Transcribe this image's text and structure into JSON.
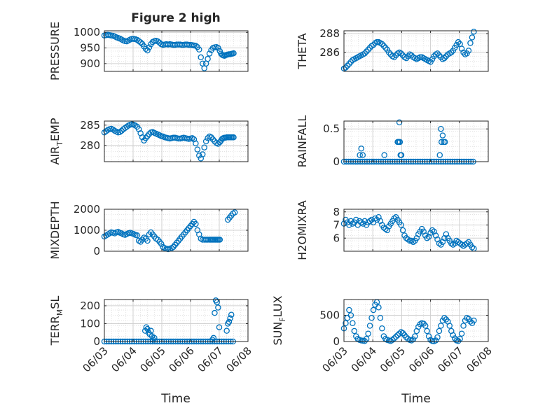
{
  "figure": {
    "title": "Figure 2 high",
    "date_ticks": [
      "06/03",
      "06/04",
      "06/05",
      "06/06",
      "06/07",
      "06/08"
    ],
    "xlabel": "Time",
    "marker_color": "#0072BD"
  },
  "chart_data": [
    {
      "type": "scatter",
      "ylabel": "PRESSURE",
      "xlim": [
        0,
        5
      ],
      "ylim": [
        875,
        1005
      ],
      "yticks": [
        900,
        950,
        1000
      ],
      "ytick_labels": [
        "900",
        "950",
        "1000"
      ],
      "x": [
        0.0,
        0.06,
        0.12,
        0.18,
        0.24,
        0.3,
        0.36,
        0.42,
        0.48,
        0.54,
        0.6,
        0.66,
        0.72,
        0.78,
        0.84,
        0.9,
        0.96,
        1.02,
        1.08,
        1.14,
        1.2,
        1.26,
        1.32,
        1.38,
        1.44,
        1.5,
        1.56,
        1.62,
        1.68,
        1.74,
        1.8,
        1.86,
        1.92,
        1.98,
        2.04,
        2.1,
        2.16,
        2.22,
        2.28,
        2.34,
        2.4,
        2.46,
        2.52,
        2.58,
        2.64,
        2.7,
        2.76,
        2.82,
        2.88,
        2.94,
        3.0,
        3.06,
        3.12,
        3.18,
        3.24,
        3.3,
        3.36,
        3.42,
        3.48,
        3.54,
        3.6,
        3.66,
        3.72,
        3.78,
        3.84,
        3.9,
        3.96,
        4.02,
        4.06,
        4.1,
        4.14,
        4.18,
        4.22,
        4.26,
        4.3,
        4.34,
        4.38,
        4.42,
        4.46,
        4.5
      ],
      "y": [
        990,
        991,
        992,
        991,
        990,
        989,
        987,
        984,
        982,
        980,
        977,
        974,
        972,
        971,
        974,
        977,
        979,
        979,
        978,
        976,
        972,
        968,
        963,
        955,
        947,
        942,
        952,
        962,
        969,
        972,
        973,
        971,
        967,
        962,
        960,
        961,
        962,
        961,
        962,
        961,
        960,
        960,
        961,
        961,
        961,
        960,
        960,
        961,
        961,
        960,
        960,
        959,
        958,
        957,
        953,
        945,
        920,
        900,
        885,
        900,
        915,
        932,
        943,
        950,
        952,
        953,
        950,
        940,
        932,
        928,
        926,
        925,
        927,
        928,
        929,
        930,
        930,
        931,
        932,
        933
      ]
    },
    {
      "type": "scatter",
      "ylabel": "THETA",
      "xlim": [
        0,
        5
      ],
      "ylim": [
        284,
        288.3
      ],
      "yticks": [
        286,
        288
      ],
      "ytick_labels": [
        "286",
        "288"
      ],
      "x": [
        0.0,
        0.06,
        0.12,
        0.18,
        0.24,
        0.3,
        0.36,
        0.42,
        0.48,
        0.54,
        0.6,
        0.66,
        0.72,
        0.78,
        0.84,
        0.9,
        0.96,
        1.02,
        1.08,
        1.14,
        1.2,
        1.26,
        1.32,
        1.38,
        1.44,
        1.5,
        1.56,
        1.62,
        1.68,
        1.74,
        1.8,
        1.86,
        1.92,
        1.98,
        2.04,
        2.1,
        2.16,
        2.22,
        2.28,
        2.34,
        2.4,
        2.46,
        2.52,
        2.58,
        2.64,
        2.7,
        2.76,
        2.82,
        2.88,
        2.94,
        3.0,
        3.06,
        3.12,
        3.18,
        3.24,
        3.3,
        3.36,
        3.42,
        3.48,
        3.54,
        3.6,
        3.66,
        3.72,
        3.78,
        3.84,
        3.9,
        3.96,
        4.02,
        4.08,
        4.14,
        4.2,
        4.26,
        4.32,
        4.38,
        4.44,
        4.5
      ],
      "y": [
        284.3,
        284.4,
        284.6,
        284.8,
        285.0,
        285.2,
        285.3,
        285.4,
        285.5,
        285.6,
        285.7,
        285.8,
        285.9,
        286.1,
        286.3,
        286.5,
        286.7,
        286.8,
        287.0,
        287.1,
        287.1,
        287.0,
        286.9,
        286.7,
        286.5,
        286.3,
        286.0,
        285.8,
        285.6,
        285.5,
        285.7,
        285.9,
        286.0,
        285.9,
        285.7,
        285.5,
        285.4,
        285.6,
        285.8,
        285.7,
        285.5,
        285.4,
        285.3,
        285.4,
        285.5,
        285.5,
        285.4,
        285.3,
        285.2,
        285.1,
        285.0,
        285.3,
        285.6,
        285.8,
        285.9,
        285.7,
        285.5,
        285.3,
        285.4,
        285.6,
        285.8,
        285.9,
        286.0,
        286.2,
        286.5,
        286.8,
        287.1,
        286.9,
        286.4,
        286.0,
        285.8,
        285.9,
        286.2,
        287.0,
        287.6,
        288.2
      ]
    },
    {
      "type": "scatter",
      "ylabel": "AIR_TEMP",
      "ylabel_parts": [
        "AIR",
        "T",
        "EMP"
      ],
      "xlim": [
        0,
        5
      ],
      "ylim": [
        276,
        286
      ],
      "yticks": [
        280,
        285
      ],
      "ytick_labels": [
        "280",
        "285"
      ],
      "x": [
        0.0,
        0.06,
        0.12,
        0.18,
        0.24,
        0.3,
        0.36,
        0.42,
        0.48,
        0.54,
        0.6,
        0.66,
        0.72,
        0.78,
        0.84,
        0.9,
        0.96,
        1.02,
        1.08,
        1.14,
        1.2,
        1.26,
        1.32,
        1.38,
        1.44,
        1.5,
        1.56,
        1.62,
        1.68,
        1.74,
        1.8,
        1.86,
        1.92,
        1.98,
        2.04,
        2.1,
        2.16,
        2.22,
        2.28,
        2.34,
        2.4,
        2.46,
        2.52,
        2.58,
        2.64,
        2.7,
        2.76,
        2.82,
        2.88,
        2.94,
        3.0,
        3.06,
        3.12,
        3.18,
        3.24,
        3.3,
        3.36,
        3.42,
        3.48,
        3.54,
        3.6,
        3.66,
        3.72,
        3.78,
        3.84,
        3.9,
        3.96,
        4.02,
        4.06,
        4.1,
        4.14,
        4.18,
        4.22,
        4.26,
        4.3,
        4.34,
        4.38,
        4.42,
        4.46,
        4.5
      ],
      "y": [
        283.2,
        283.5,
        283.8,
        284.0,
        284.1,
        283.9,
        283.6,
        283.4,
        283.2,
        283.3,
        283.6,
        284.0,
        284.3,
        284.6,
        284.9,
        285.1,
        285.2,
        285.1,
        284.9,
        284.6,
        284.0,
        283.0,
        282.0,
        281.2,
        281.8,
        282.3,
        282.8,
        283.2,
        283.3,
        283.1,
        282.9,
        282.7,
        282.5,
        282.3,
        282.2,
        282.0,
        281.9,
        281.8,
        281.7,
        281.8,
        281.9,
        281.9,
        281.8,
        281.7,
        281.7,
        281.8,
        281.9,
        281.8,
        281.7,
        281.6,
        281.7,
        281.8,
        281.5,
        280.5,
        279.0,
        277.5,
        276.8,
        277.8,
        279.5,
        281.0,
        281.8,
        282.2,
        282.0,
        281.5,
        281.0,
        280.6,
        280.4,
        280.8,
        281.2,
        281.6,
        281.8,
        281.9,
        281.9,
        282.0,
        282.0,
        282.0,
        282.0,
        282.0,
        282.0,
        282.0
      ]
    },
    {
      "type": "scatter",
      "ylabel": "RAINFALL",
      "xlim": [
        0,
        5
      ],
      "ylim": [
        0,
        0.62
      ],
      "yticks": [
        0,
        0.5
      ],
      "ytick_labels": [
        "0",
        "0.5"
      ],
      "x": [
        0.0,
        0.08,
        0.16,
        0.24,
        0.32,
        0.4,
        0.48,
        0.56,
        0.64,
        0.72,
        0.8,
        0.88,
        0.96,
        1.04,
        1.12,
        1.2,
        1.28,
        1.36,
        1.44,
        1.52,
        1.6,
        1.68,
        1.76,
        1.84,
        1.92,
        2.0,
        2.08,
        2.16,
        2.24,
        2.32,
        2.4,
        2.48,
        2.56,
        2.64,
        2.72,
        2.8,
        2.88,
        2.96,
        3.04,
        3.12,
        3.2,
        3.28,
        3.36,
        3.44,
        3.52,
        3.6,
        3.68,
        3.76,
        3.84,
        3.92,
        4.0,
        4.08,
        4.16,
        4.24,
        4.32,
        4.4,
        4.48,
        0.55,
        0.6,
        0.65,
        1.4,
        1.86,
        1.88,
        1.9,
        1.92,
        1.94,
        1.96,
        1.99,
        3.32,
        3.36,
        3.38,
        3.42,
        3.46,
        3.5
      ],
      "y": [
        0,
        0,
        0,
        0,
        0,
        0,
        0,
        0,
        0,
        0,
        0,
        0,
        0,
        0,
        0,
        0,
        0,
        0,
        0,
        0,
        0,
        0,
        0,
        0,
        0,
        0,
        0,
        0,
        0,
        0,
        0,
        0,
        0,
        0,
        0,
        0,
        0,
        0,
        0,
        0,
        0,
        0,
        0,
        0,
        0,
        0,
        0,
        0,
        0,
        0,
        0,
        0,
        0,
        0,
        0,
        0,
        0,
        0.1,
        0.2,
        0.1,
        0.1,
        0.3,
        0.3,
        0.3,
        0.6,
        0.3,
        0.1,
        0.1,
        0.1,
        0.5,
        0.3,
        0.4,
        0.3,
        0.3
      ]
    },
    {
      "type": "scatter",
      "ylabel": "MIXDEPTH",
      "xlim": [
        0,
        5
      ],
      "ylim": [
        0,
        2000
      ],
      "yticks": [
        0,
        1000,
        2000
      ],
      "ytick_labels": [
        "0",
        "1000",
        "2000"
      ],
      "x": [
        0.0,
        0.06,
        0.12,
        0.18,
        0.24,
        0.3,
        0.36,
        0.42,
        0.48,
        0.54,
        0.6,
        0.66,
        0.72,
        0.78,
        0.84,
        0.9,
        0.96,
        1.02,
        1.08,
        1.14,
        1.2,
        1.26,
        1.32,
        1.38,
        1.44,
        1.5,
        1.56,
        1.62,
        1.68,
        1.74,
        1.8,
        1.86,
        1.92,
        1.98,
        2.04,
        2.1,
        2.16,
        2.22,
        2.28,
        2.34,
        2.4,
        2.46,
        2.52,
        2.58,
        2.64,
        2.7,
        2.76,
        2.82,
        2.88,
        2.94,
        3.0,
        3.06,
        3.12,
        3.18,
        3.24,
        3.3,
        3.36,
        3.42,
        3.48,
        3.54,
        3.6,
        3.66,
        3.7,
        3.74,
        3.78,
        3.82,
        3.86,
        3.9,
        3.94,
        3.98,
        4.02,
        4.3,
        4.36,
        4.42,
        4.48,
        4.54
      ],
      "y": [
        700,
        750,
        800,
        850,
        900,
        880,
        850,
        900,
        920,
        880,
        850,
        800,
        780,
        820,
        860,
        880,
        850,
        820,
        780,
        760,
        500,
        450,
        550,
        650,
        600,
        500,
        800,
        900,
        800,
        700,
        600,
        550,
        450,
        350,
        200,
        150,
        120,
        100,
        120,
        150,
        200,
        300,
        400,
        500,
        600,
        700,
        800,
        900,
        1000,
        1100,
        1200,
        1300,
        1400,
        1300,
        1000,
        800,
        600,
        550,
        550,
        550,
        550,
        550,
        550,
        550,
        550,
        550,
        550,
        550,
        550,
        550,
        550,
        1500,
        1600,
        1700,
        1800,
        1850
      ]
    },
    {
      "type": "scatter",
      "ylabel": "H2OMIXRA",
      "xlim": [
        0,
        5
      ],
      "ylim": [
        5,
        8.2
      ],
      "yticks": [
        6,
        7,
        8
      ],
      "ytick_labels": [
        "6",
        "7",
        "8"
      ],
      "x": [
        0.0,
        0.06,
        0.12,
        0.18,
        0.24,
        0.3,
        0.36,
        0.42,
        0.48,
        0.54,
        0.6,
        0.66,
        0.72,
        0.78,
        0.84,
        0.9,
        0.96,
        1.02,
        1.08,
        1.14,
        1.2,
        1.26,
        1.32,
        1.38,
        1.44,
        1.5,
        1.56,
        1.62,
        1.68,
        1.74,
        1.8,
        1.86,
        1.92,
        1.98,
        2.04,
        2.1,
        2.16,
        2.22,
        2.28,
        2.34,
        2.4,
        2.46,
        2.52,
        2.58,
        2.64,
        2.7,
        2.76,
        2.82,
        2.88,
        2.94,
        3.0,
        3.06,
        3.12,
        3.18,
        3.24,
        3.3,
        3.36,
        3.42,
        3.48,
        3.54,
        3.6,
        3.66,
        3.72,
        3.78,
        3.84,
        3.9,
        3.96,
        4.02,
        4.08,
        4.14,
        4.2,
        4.26,
        4.32,
        4.38,
        4.44,
        4.5
      ],
      "y": [
        7.1,
        7.4,
        7.2,
        7.0,
        7.3,
        7.1,
        7.2,
        7.4,
        7.0,
        7.3,
        7.2,
        7.1,
        7.3,
        7.0,
        7.2,
        7.3,
        7.4,
        7.2,
        7.5,
        7.4,
        7.6,
        7.3,
        7.0,
        6.8,
        6.7,
        6.6,
        6.9,
        7.1,
        7.3,
        7.5,
        7.6,
        7.4,
        7.2,
        7.0,
        6.6,
        6.2,
        6.0,
        5.9,
        5.8,
        5.8,
        5.7,
        5.8,
        6.0,
        6.3,
        6.5,
        6.7,
        6.5,
        6.2,
        6.0,
        6.1,
        6.4,
        6.6,
        6.5,
        6.2,
        5.9,
        5.6,
        5.5,
        5.7,
        6.0,
        6.3,
        6.0,
        5.8,
        5.6,
        5.5,
        5.6,
        5.8,
        5.7,
        5.6,
        5.5,
        5.4,
        5.5,
        5.6,
        5.7,
        5.5,
        5.3,
        5.2
      ]
    },
    {
      "type": "scatter",
      "ylabel": "TERR_MSL",
      "ylabel_parts": [
        "TERR",
        "M",
        "SL"
      ],
      "xlim": [
        0,
        5
      ],
      "ylim": [
        0,
        235
      ],
      "yticks": [
        0,
        100,
        200
      ],
      "ytick_labels": [
        "0",
        "100",
        "200"
      ],
      "x": [
        0.0,
        0.08,
        0.16,
        0.24,
        0.32,
        0.4,
        0.48,
        0.56,
        0.64,
        0.72,
        0.8,
        0.88,
        0.96,
        1.04,
        1.12,
        1.2,
        1.28,
        1.36,
        1.44,
        1.52,
        1.6,
        1.68,
        1.76,
        1.84,
        1.92,
        2.0,
        2.08,
        2.16,
        2.24,
        2.32,
        2.4,
        2.48,
        2.56,
        2.64,
        2.72,
        2.8,
        2.88,
        2.96,
        3.04,
        3.12,
        3.2,
        3.28,
        3.36,
        3.44,
        3.52,
        3.6,
        3.68,
        3.76,
        3.84,
        3.92,
        4.0,
        4.08,
        4.16,
        4.24,
        4.32,
        4.4,
        4.48,
        1.42,
        1.46,
        1.5,
        1.54,
        1.58,
        1.62,
        1.66,
        1.7,
        1.74,
        3.76,
        3.8,
        3.84,
        3.88,
        3.92,
        3.96,
        4.0,
        4.26,
        4.3,
        4.34,
        4.38,
        4.42
      ],
      "y": [
        0,
        0,
        0,
        0,
        0,
        0,
        0,
        0,
        0,
        0,
        0,
        0,
        0,
        0,
        0,
        0,
        0,
        0,
        0,
        0,
        0,
        0,
        0,
        0,
        0,
        0,
        0,
        0,
        0,
        0,
        0,
        0,
        0,
        0,
        0,
        0,
        0,
        0,
        0,
        0,
        0,
        0,
        0,
        0,
        0,
        0,
        0,
        0,
        0,
        0,
        0,
        0,
        0,
        0,
        0,
        0,
        0,
        60,
        80,
        70,
        50,
        40,
        60,
        30,
        10,
        20,
        10,
        20,
        160,
        230,
        220,
        190,
        80,
        60,
        100,
        110,
        130,
        150
      ]
    },
    {
      "type": "scatter",
      "ylabel": "SUN_FLUX",
      "ylabel_parts": [
        "SUN",
        "F",
        "LUX"
      ],
      "xlim": [
        0,
        5
      ],
      "ylim": [
        0,
        800
      ],
      "yticks": [
        0,
        500
      ],
      "ytick_labels": [
        "0",
        "500"
      ],
      "x": [
        0.0,
        0.06,
        0.12,
        0.18,
        0.24,
        0.3,
        0.36,
        0.42,
        0.48,
        0.54,
        0.6,
        0.66,
        0.72,
        0.78,
        0.84,
        0.9,
        0.96,
        1.02,
        1.08,
        1.14,
        1.2,
        1.26,
        1.32,
        1.38,
        1.44,
        1.5,
        1.56,
        1.62,
        1.68,
        1.74,
        1.8,
        1.86,
        1.92,
        1.98,
        2.04,
        2.1,
        2.16,
        2.22,
        2.28,
        2.34,
        2.4,
        2.46,
        2.52,
        2.58,
        2.64,
        2.7,
        2.76,
        2.82,
        2.88,
        2.94,
        3.0,
        3.06,
        3.12,
        3.18,
        3.24,
        3.3,
        3.36,
        3.42,
        3.48,
        3.54,
        3.6,
        3.66,
        3.72,
        3.78,
        3.84,
        3.9,
        3.96,
        4.02,
        4.08,
        4.14,
        4.2,
        4.26,
        4.32,
        4.38,
        4.44,
        4.5
      ],
      "y": [
        250,
        350,
        450,
        600,
        500,
        350,
        200,
        100,
        50,
        30,
        20,
        15,
        10,
        50,
        150,
        300,
        450,
        600,
        700,
        750,
        650,
        450,
        250,
        100,
        50,
        30,
        20,
        10,
        30,
        60,
        90,
        120,
        150,
        180,
        160,
        120,
        80,
        50,
        30,
        20,
        40,
        100,
        200,
        280,
        330,
        350,
        340,
        300,
        200,
        100,
        30,
        10,
        5,
        20,
        80,
        200,
        300,
        400,
        450,
        420,
        380,
        300,
        200,
        120,
        60,
        20,
        10,
        50,
        150,
        300,
        400,
        450,
        430,
        380,
        350,
        400
      ]
    }
  ]
}
